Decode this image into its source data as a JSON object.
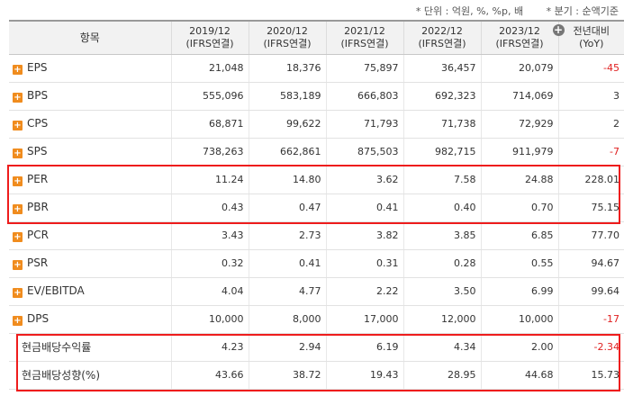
{
  "notes": {
    "unit": "* 단위 : 억원, %, %p, 배",
    "period": "* 분기 : 순액기준"
  },
  "header": {
    "item_label": "항목",
    "columns": [
      {
        "year": "2019/12",
        "basis": "(IFRS연결)"
      },
      {
        "year": "2020/12",
        "basis": "(IFRS연결)"
      },
      {
        "year": "2021/12",
        "basis": "(IFRS연결)"
      },
      {
        "year": "2022/12",
        "basis": "(IFRS연결)"
      },
      {
        "year": "2023/12",
        "basis": "(IFRS연결)"
      }
    ],
    "yoy_line1": "전년대비",
    "yoy_line2": "(YoY)",
    "add_column_icon": "plus-circle-icon"
  },
  "rows": [
    {
      "label": "EPS",
      "values": [
        "21,048",
        "18,376",
        "75,897",
        "36,457",
        "20,079"
      ],
      "yoy": "-45"
    },
    {
      "label": "BPS",
      "values": [
        "555,096",
        "583,189",
        "666,803",
        "692,323",
        "714,069"
      ],
      "yoy": "3"
    },
    {
      "label": "CPS",
      "values": [
        "68,871",
        "99,622",
        "71,793",
        "71,738",
        "72,929"
      ],
      "yoy": "2"
    },
    {
      "label": "SPS",
      "values": [
        "738,263",
        "662,861",
        "875,503",
        "982,715",
        "911,979"
      ],
      "yoy": "-7"
    },
    {
      "label": "PER",
      "values": [
        "11.24",
        "14.80",
        "3.62",
        "7.58",
        "24.88"
      ],
      "yoy": "228.01"
    },
    {
      "label": "PBR",
      "values": [
        "0.43",
        "0.47",
        "0.41",
        "0.40",
        "0.70"
      ],
      "yoy": "75.15"
    },
    {
      "label": "PCR",
      "values": [
        "3.43",
        "2.73",
        "3.82",
        "3.85",
        "6.85"
      ],
      "yoy": "77.70"
    },
    {
      "label": "PSR",
      "values": [
        "0.32",
        "0.41",
        "0.31",
        "0.28",
        "0.55"
      ],
      "yoy": "94.67"
    },
    {
      "label": "EV/EBITDA",
      "values": [
        "4.04",
        "4.77",
        "2.22",
        "3.50",
        "6.99"
      ],
      "yoy": "99.64"
    },
    {
      "label": "DPS",
      "values": [
        "10,000",
        "8,000",
        "17,000",
        "12,000",
        "10,000"
      ],
      "yoy": "-17"
    },
    {
      "label": "현금배당수익률",
      "values": [
        "4.23",
        "2.94",
        "6.19",
        "4.34",
        "2.00"
      ],
      "yoy": "-2.34"
    },
    {
      "label": "현금배당성향(%)",
      "values": [
        "43.66",
        "38.72",
        "19.43",
        "28.95",
        "44.68"
      ],
      "yoy": "15.73"
    }
  ],
  "colors": {
    "expand_icon": "#f08c1e",
    "negative": "#e02020",
    "highlight_box": "#ee1c1c",
    "header_bg": "#f2f2f2"
  }
}
